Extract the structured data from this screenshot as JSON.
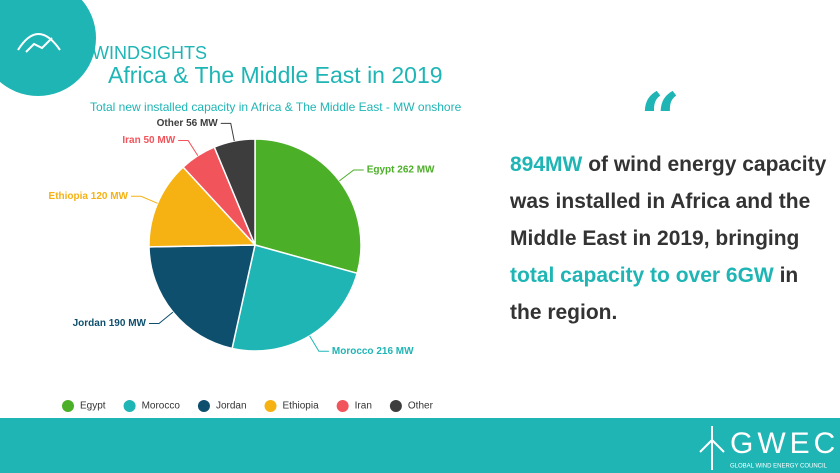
{
  "header": {
    "brand": "WINDSIGHTS",
    "title": "Africa & The Middle East in 2019"
  },
  "chart_data": {
    "type": "pie",
    "subtitle": "Total new installed capacity in Africa & The Middle East - MW onshore",
    "categories": [
      "Egypt",
      "Morocco",
      "Jordan",
      "Ethiopia",
      "Iran",
      "Other"
    ],
    "values": [
      262,
      216,
      190,
      120,
      50,
      56
    ],
    "value_labels": [
      "Egypt 262 MW",
      "Morocco 216 MW",
      "Jordan 190 MW",
      "Ethiopia 120 MW",
      "Iran 50 MW",
      "Other 56 MW"
    ],
    "colors": [
      "#4caf28",
      "#1fb5b5",
      "#0e4f6e",
      "#f5b212",
      "#f2545b",
      "#3d3d3d"
    ],
    "legend": "bottom"
  },
  "quote": {
    "mark": "“",
    "parts": [
      {
        "text": "894MW",
        "highlight": true
      },
      {
        "text": " of wind energy capacity was installed in Africa and the Middle East in 2019, bringing ",
        "highlight": false
      },
      {
        "text": "total capacity to over 6GW",
        "highlight": true
      },
      {
        "text": " in the region.",
        "highlight": false
      }
    ]
  },
  "footer": {
    "logo": "GWEC",
    "tagline": "GLOBAL WIND ENERGY COUNCIL"
  }
}
